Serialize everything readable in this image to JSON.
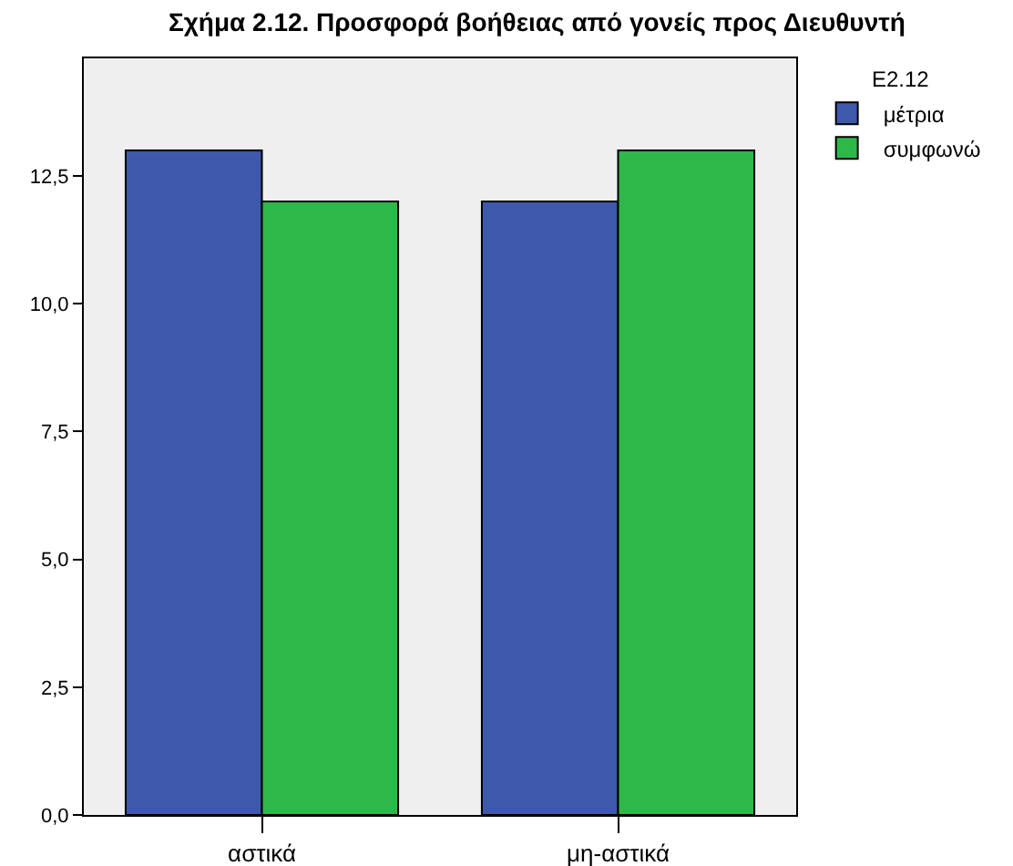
{
  "chart_data": {
    "type": "bar",
    "title": "Σχήμα 2.12. Προσφορά βοήθειας από γονείς προς Διευθυντή",
    "legend_title": "E2.12",
    "categories": [
      "αστικά",
      "μη-αστικά"
    ],
    "series": [
      {
        "name": "μέτρια",
        "color": "#3e58ac",
        "values": [
          13,
          12
        ]
      },
      {
        "name": "συμφωνώ",
        "color": "#2eb84a",
        "values": [
          12,
          13
        ]
      }
    ],
    "ylim": [
      0,
      14.8
    ],
    "yticks": [
      {
        "value": 0,
        "label": "0,0"
      },
      {
        "value": 2.5,
        "label": "2,5"
      },
      {
        "value": 5,
        "label": "5,0"
      },
      {
        "value": 7.5,
        "label": "7,5"
      },
      {
        "value": 10,
        "label": "10,0"
      },
      {
        "value": 12.5,
        "label": "12,5"
      }
    ],
    "grid": false,
    "legend": "top right"
  }
}
